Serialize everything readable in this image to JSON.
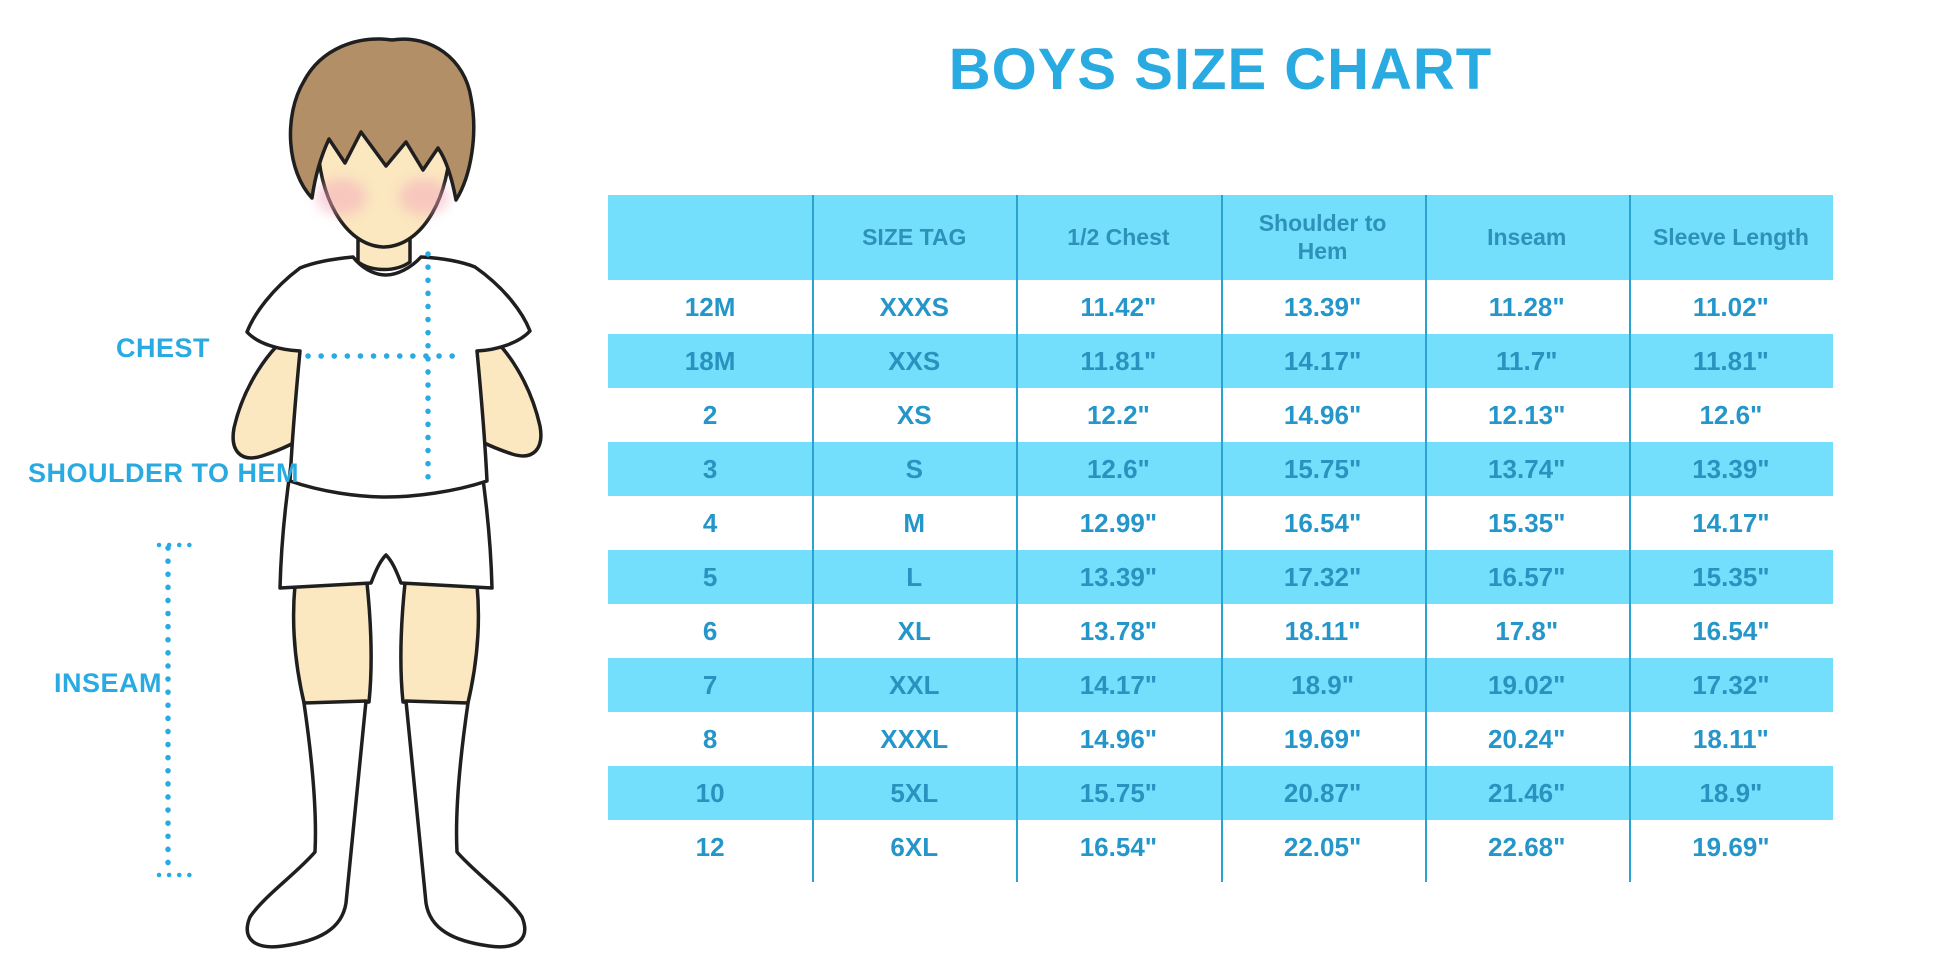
{
  "title": "BOYS SIZE CHART",
  "figure": {
    "labels": {
      "chest": "CHEST",
      "shoulder_to_hem": "SHOULDER TO HEM",
      "inseam": "INSEAM"
    }
  },
  "table": {
    "columns": [
      "",
      "SIZE TAG",
      "1/2 Chest",
      "Shoulder to Hem",
      "Inseam",
      "Sleeve Length"
    ],
    "rows": [
      [
        "12M",
        "XXXS",
        "11.42\"",
        "13.39\"",
        "11.28\"",
        "11.02\""
      ],
      [
        "18M",
        "XXS",
        "11.81\"",
        "14.17\"",
        "11.7\"",
        "11.81\""
      ],
      [
        "2",
        "XS",
        "12.2\"",
        "14.96\"",
        "12.13\"",
        "12.6\""
      ],
      [
        "3",
        "S",
        "12.6\"",
        "15.75\"",
        "13.74\"",
        "13.39\""
      ],
      [
        "4",
        "M",
        "12.99\"",
        "16.54\"",
        "15.35\"",
        "14.17\""
      ],
      [
        "5",
        "L",
        "13.39\"",
        "17.32\"",
        "16.57\"",
        "15.35\""
      ],
      [
        "6",
        "XL",
        "13.78\"",
        "18.11\"",
        "17.8\"",
        "16.54\""
      ],
      [
        "7",
        "XXL",
        "14.17\"",
        "18.9\"",
        "19.02\"",
        "17.32\""
      ],
      [
        "8",
        "XXXL",
        "14.96\"",
        "19.69\"",
        "20.24\"",
        "18.11\""
      ],
      [
        "10",
        "5XL",
        "15.75\"",
        "20.87\"",
        "21.46\"",
        "18.9\""
      ],
      [
        "12",
        "6XL",
        "16.54\"",
        "22.05\"",
        "22.68\"",
        "19.69\""
      ]
    ]
  },
  "colors": {
    "accent_blue": "#29ABE2",
    "stripe_blue": "#74DFFC",
    "divider_blue": "#29A3D2",
    "header_text_blue": "#2D91BA",
    "cell_text_blue": "#2496CA",
    "skin": "#FBE7C0",
    "hair_brown": "#B28F66",
    "cheek_pink": "#F4A7BB"
  }
}
